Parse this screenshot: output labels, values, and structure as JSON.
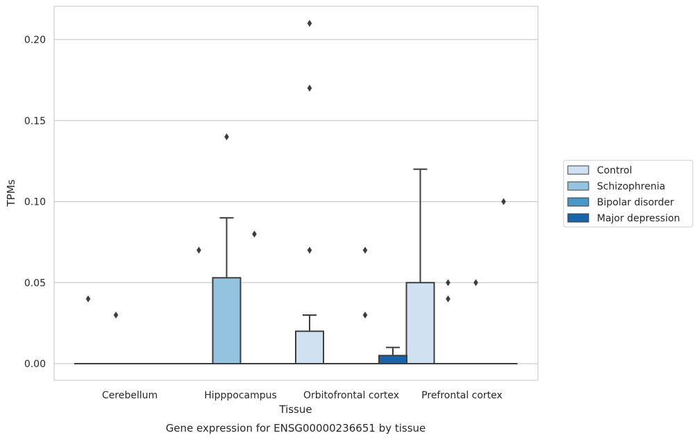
{
  "chart_data": {
    "type": "box",
    "title": "Gene expression for ENSG00000236651 by tissue",
    "xlabel": "Tissue",
    "ylabel": "TPMs",
    "ylim": [
      -0.01,
      0.221
    ],
    "yticks": [
      0.0,
      0.05,
      0.1,
      0.15,
      0.2
    ],
    "ytick_labels": [
      "0.00",
      "0.05",
      "0.10",
      "0.15",
      "0.20"
    ],
    "grid": "horizontal",
    "legend_position": "right",
    "categories": [
      "Cerebellum",
      "Hipppocampus",
      "Orbitofrontal cortex",
      "Prefrontal cortex"
    ],
    "series": [
      {
        "name": "Control",
        "color": "#d0e1f2",
        "boxes": [
          {
            "q1": 0,
            "median": 0,
            "q3": 0,
            "whisker_low": 0,
            "whisker_high": 0,
            "outliers": [
              0.04
            ]
          },
          {
            "q1": 0,
            "median": 0,
            "q3": 0,
            "whisker_low": 0,
            "whisker_high": 0,
            "outliers": [
              0.07
            ]
          },
          {
            "q1": 0,
            "median": 0,
            "q3": 0.02,
            "whisker_low": 0,
            "whisker_high": 0.03,
            "outliers": [
              0.07,
              0.17,
              0.21
            ]
          },
          {
            "q1": 0,
            "median": 0,
            "q3": 0.05,
            "whisker_low": 0,
            "whisker_high": 0.12,
            "outliers": []
          }
        ]
      },
      {
        "name": "Schizophrenia",
        "color": "#94c4df",
        "boxes": [
          {
            "q1": 0,
            "median": 0,
            "q3": 0,
            "whisker_low": 0,
            "whisker_high": 0,
            "outliers": [
              0.03
            ]
          },
          {
            "q1": 0,
            "median": 0,
            "q3": 0.053,
            "whisker_low": 0,
            "whisker_high": 0.09,
            "outliers": [
              0.14
            ]
          },
          {
            "q1": 0,
            "median": 0,
            "q3": 0,
            "whisker_low": 0,
            "whisker_high": 0,
            "outliers": []
          },
          {
            "q1": 0,
            "median": 0,
            "q3": 0,
            "whisker_low": 0,
            "whisker_high": 0,
            "outliers": [
              0.04,
              0.05
            ]
          }
        ]
      },
      {
        "name": "Bipolar disorder",
        "color": "#4a98c9",
        "boxes": [
          {
            "q1": 0,
            "median": 0,
            "q3": 0,
            "whisker_low": 0,
            "whisker_high": 0,
            "outliers": []
          },
          {
            "q1": 0,
            "median": 0,
            "q3": 0,
            "whisker_low": 0,
            "whisker_high": 0,
            "outliers": [
              0.08
            ]
          },
          {
            "q1": 0,
            "median": 0,
            "q3": 0,
            "whisker_low": 0,
            "whisker_high": 0,
            "outliers": [
              0.03,
              0.07
            ]
          },
          {
            "q1": 0,
            "median": 0,
            "q3": 0,
            "whisker_low": 0,
            "whisker_high": 0,
            "outliers": [
              0.05
            ]
          }
        ]
      },
      {
        "name": "Major depression",
        "color": "#1764ab",
        "boxes": [
          {
            "q1": 0,
            "median": 0,
            "q3": 0,
            "whisker_low": 0,
            "whisker_high": 0,
            "outliers": []
          },
          {
            "q1": 0,
            "median": 0,
            "q3": 0,
            "whisker_low": 0,
            "whisker_high": 0,
            "outliers": []
          },
          {
            "q1": 0,
            "median": 0,
            "q3": 0.005,
            "whisker_low": 0,
            "whisker_high": 0.01,
            "outliers": []
          },
          {
            "q1": 0,
            "median": 0,
            "q3": 0,
            "whisker_low": 0,
            "whisker_high": 0,
            "outliers": [
              0.1
            ]
          }
        ]
      }
    ]
  }
}
